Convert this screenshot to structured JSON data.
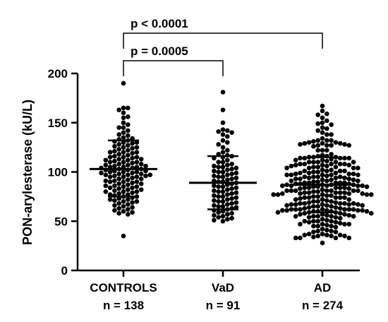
{
  "chart_data": {
    "type": "scatter",
    "subtype": "dot-plot-with-mean-and-sd",
    "ylabel": "PON-arylesterase (kU/L)",
    "ylim": [
      0,
      200
    ],
    "yticks": [
      0,
      50,
      100,
      150,
      200
    ],
    "groups": [
      {
        "name": "CONTROLS",
        "n_label": "n = 138",
        "n": 138,
        "mean": 103,
        "sd_low": 75,
        "sd_high": 132,
        "max": 190,
        "min": 35,
        "points": [
          190,
          165,
          165,
          163,
          160,
          156,
          155,
          150,
          148,
          145,
          145,
          142,
          140,
          138,
          137,
          135,
          134,
          133,
          132,
          131,
          130,
          130,
          129,
          128,
          127,
          126,
          125,
          124,
          123,
          122,
          121,
          120,
          120,
          119,
          118,
          117,
          116,
          115,
          115,
          114,
          113,
          112,
          112,
          111,
          110,
          110,
          109,
          108,
          108,
          107,
          106,
          106,
          105,
          105,
          104,
          104,
          103,
          103,
          102,
          102,
          101,
          101,
          100,
          100,
          99,
          99,
          98,
          98,
          97,
          97,
          96,
          96,
          95,
          95,
          94,
          93,
          93,
          92,
          91,
          91,
          90,
          90,
          89,
          88,
          88,
          87,
          86,
          86,
          85,
          84,
          84,
          83,
          82,
          82,
          81,
          80,
          80,
          79,
          78,
          77,
          77,
          76,
          75,
          75,
          74,
          73,
          72,
          72,
          71,
          70,
          69,
          68,
          67,
          66,
          65,
          64,
          63,
          62,
          61,
          60,
          59,
          58,
          57,
          120,
          110,
          100,
          95,
          105,
          115,
          125,
          85,
          90,
          80,
          70,
          113,
          107,
          97,
          35
        ]
      },
      {
        "name": "VaD",
        "n_label": "n = 91",
        "n": 91,
        "mean": 89,
        "sd_low": 62,
        "sd_high": 116,
        "max": 181,
        "min": 50,
        "points": [
          181,
          163,
          150,
          143,
          142,
          141,
          140,
          138,
          136,
          132,
          130,
          128,
          125,
          122,
          120,
          118,
          117,
          116,
          115,
          114,
          112,
          110,
          108,
          107,
          106,
          105,
          104,
          103,
          102,
          101,
          100,
          99,
          98,
          97,
          96,
          95,
          94,
          93,
          92,
          91,
          90,
          89,
          88,
          87,
          86,
          85,
          84,
          83,
          82,
          81,
          80,
          79,
          78,
          77,
          76,
          75,
          74,
          73,
          72,
          71,
          70,
          69,
          68,
          67,
          66,
          65,
          64,
          63,
          62,
          61,
          60,
          59,
          58,
          57,
          56,
          55,
          54,
          53,
          52,
          51,
          50,
          110,
          100,
          90,
          80,
          70,
          85,
          95,
          75,
          65,
          105
        ]
      },
      {
        "name": "AD",
        "n_label": "n = 274",
        "n": 274,
        "mean": 87,
        "sd_low": 59,
        "sd_high": 115,
        "max": 167,
        "min": 28,
        "points": []
      }
    ],
    "comparisons": [
      {
        "from": "CONTROLS",
        "to": "VaD",
        "label": "p = 0.0005"
      },
      {
        "from": "CONTROLS",
        "to": "AD",
        "label": "p < 0.0001"
      }
    ],
    "colors": {
      "points": "#000000",
      "axis": "#000000"
    }
  }
}
